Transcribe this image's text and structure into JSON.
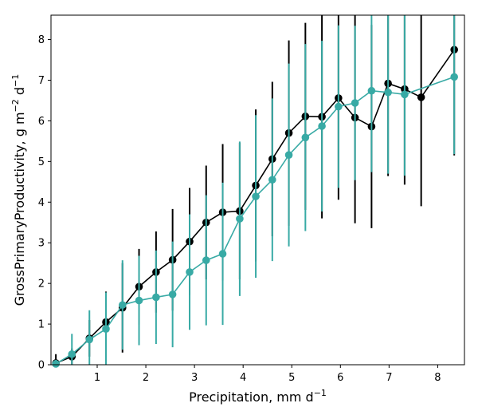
{
  "chart_data": {
    "type": "line",
    "title": "",
    "xlabel": "Precipitation,  mm d",
    "xlabel_sup": "−1",
    "ylabel_main": "GrossPrimaryProductivity,  g m",
    "ylabel_sup1": "−2",
    "ylabel_mid": " d",
    "ylabel_sup2": "−1",
    "xlim": [
      0.05,
      8.55
    ],
    "ylim": [
      0,
      8.6
    ],
    "xticks": [
      "1",
      "2",
      "3",
      "4",
      "5",
      "6",
      "7",
      "8"
    ],
    "yticks": [
      "0",
      "1",
      "2",
      "3",
      "4",
      "5",
      "6",
      "7",
      "8"
    ],
    "grid": false,
    "legend": "none",
    "series": [
      {
        "color": "#000000",
        "x": [
          0.15,
          0.48,
          0.84,
          1.18,
          1.52,
          1.86,
          2.21,
          2.55,
          2.9,
          3.24,
          3.58,
          3.93,
          4.26,
          4.6,
          4.94,
          5.28,
          5.62,
          5.96,
          6.3,
          6.64,
          6.98,
          7.32,
          7.66,
          8.34
        ],
        "y": [
          0.04,
          0.2,
          0.65,
          1.05,
          1.4,
          1.92,
          2.28,
          2.58,
          3.03,
          3.5,
          3.75,
          3.78,
          4.41,
          5.06,
          5.7,
          6.11,
          6.1,
          6.56,
          6.08,
          5.86,
          6.92,
          6.78,
          6.58,
          7.75
        ],
        "err": [
          0.22,
          0.2,
          0.45,
          0.75,
          1.1,
          0.93,
          1.0,
          1.25,
          1.32,
          1.4,
          1.68,
          1.68,
          1.87,
          1.9,
          2.28,
          2.3,
          2.5,
          2.5,
          2.6,
          2.5,
          2.28,
          2.35,
          2.68,
          2.6
        ]
      },
      {
        "color": "#38aaa5",
        "x": [
          0.15,
          0.48,
          0.84,
          1.18,
          1.52,
          1.86,
          2.21,
          2.55,
          2.9,
          3.24,
          3.58,
          3.93,
          4.26,
          4.6,
          4.94,
          5.28,
          5.62,
          5.96,
          6.3,
          6.64,
          6.98,
          7.32,
          8.34
        ],
        "y": [
          0.02,
          0.26,
          0.62,
          0.88,
          1.47,
          1.58,
          1.66,
          1.73,
          2.28,
          2.57,
          2.73,
          3.59,
          4.14,
          4.55,
          5.16,
          5.59,
          5.87,
          6.35,
          6.44,
          6.74,
          6.7,
          6.65,
          7.08
        ],
        "err": [
          0.1,
          0.5,
          0.72,
          0.9,
          1.1,
          1.1,
          1.15,
          1.3,
          1.42,
          1.6,
          1.75,
          1.9,
          2.0,
          2.0,
          2.25,
          2.3,
          2.1,
          2.0,
          1.9,
          2.0,
          2.0,
          2.0,
          1.9
        ]
      }
    ]
  }
}
